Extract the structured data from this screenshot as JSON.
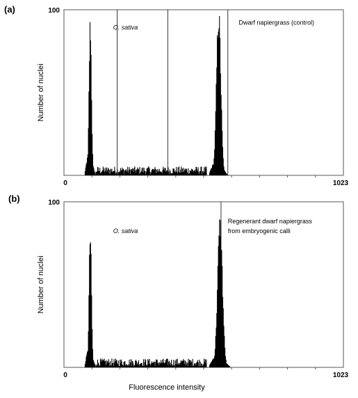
{
  "chart_data": [
    {
      "type": "bar",
      "panel_label": "(a)",
      "ylabel": "Number of nuclei",
      "xlabel": "",
      "x_tick_labels": [
        "0",
        "1023"
      ],
      "y_tick_labels": [
        "100"
      ],
      "xlim": [
        0,
        1023
      ],
      "ylim": [
        0,
        100
      ],
      "annotations": [
        {
          "text": "O. sativa",
          "italic": true,
          "x": 180,
          "y": 88
        },
        {
          "text": "Dwarf napiergrass (control)",
          "italic": false,
          "x": 640,
          "y": 91
        }
      ],
      "peaks": [
        {
          "center": 95,
          "height": 94,
          "sigma": 4.5,
          "shoulder_left": [
            75,
            20
          ],
          "shoulder_right": [
            115,
            10
          ]
        },
        {
          "center": 565,
          "height": 100,
          "sigma": 8,
          "shoulder_left": [
            530,
            14
          ],
          "shoulder_right": [
            600,
            6
          ]
        }
      ],
      "baseline": {
        "x": [
          115,
          520
        ],
        "level": 3
      },
      "marker_x": [
        195,
        380,
        600
      ]
    },
    {
      "type": "bar",
      "panel_label": "(b)",
      "ylabel": "Number of nuclei",
      "xlabel": "Fluorescence intensity",
      "x_tick_labels": [
        "0",
        "1023"
      ],
      "y_tick_labels": [
        "100"
      ],
      "xlim": [
        0,
        1023
      ],
      "ylim": [
        0,
        100
      ],
      "annotations": [
        {
          "text": "O. sativa",
          "italic": true,
          "x": 180,
          "y": 81
        },
        {
          "text": "Regenerant dwarf napiergrass",
          "italic": false,
          "x": 600,
          "y": 87
        },
        {
          "text": "from embryogenic calli",
          "italic": false,
          "x": 600,
          "y": 81
        }
      ],
      "peaks": [
        {
          "center": 95,
          "height": 82,
          "sigma": 4.5,
          "shoulder_left": [
            75,
            18
          ],
          "shoulder_right": [
            115,
            9
          ]
        },
        {
          "center": 570,
          "height": 90,
          "sigma": 9,
          "shoulder_left": [
            530,
            12
          ],
          "shoulder_right": [
            610,
            5
          ]
        }
      ],
      "baseline": {
        "x": [
          115,
          520
        ],
        "level": 3
      },
      "marker_x": [
        575
      ]
    }
  ]
}
